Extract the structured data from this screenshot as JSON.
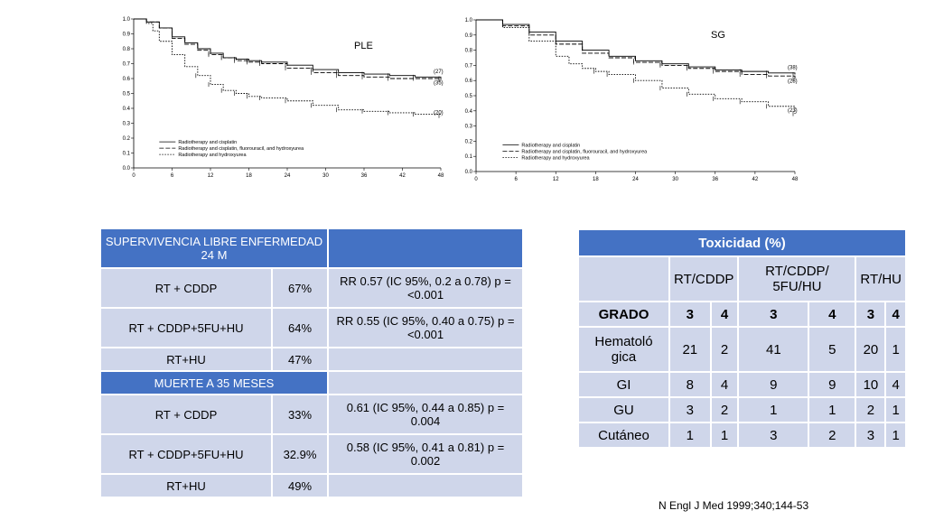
{
  "chart_data": [
    {
      "type": "line",
      "panel_label": "PLE",
      "x_ticks": [
        0,
        6,
        12,
        18,
        24,
        30,
        36,
        42,
        48
      ],
      "y_ticks": [
        "0.0",
        "0.1",
        "0.2",
        "0.3",
        "0.4",
        "0.5",
        "0.6",
        "0.7",
        "0.8",
        "0.9",
        "1.0"
      ],
      "xlim": [
        0,
        48
      ],
      "ylim": [
        0,
        1
      ],
      "legend_position": "bottom-left",
      "series": [
        {
          "name": "Radiotherapy and cisplatin",
          "style": "solid",
          "end_label": "(27)",
          "x": [
            0,
            2,
            4,
            6,
            8,
            10,
            12,
            14,
            16,
            18,
            20,
            24,
            28,
            32,
            36,
            40,
            44,
            48
          ],
          "y": [
            1.0,
            0.98,
            0.94,
            0.88,
            0.84,
            0.8,
            0.77,
            0.74,
            0.73,
            0.72,
            0.71,
            0.69,
            0.66,
            0.64,
            0.63,
            0.62,
            0.61,
            0.6
          ]
        },
        {
          "name": "Radiotherapy and cisplatin, fluorouracil, and hydroxyurea",
          "style": "dashed",
          "end_label": "(35)",
          "x": [
            0,
            2,
            4,
            6,
            8,
            10,
            12,
            14,
            16,
            18,
            20,
            24,
            28,
            32,
            36,
            40,
            44,
            48
          ],
          "y": [
            1.0,
            0.98,
            0.94,
            0.87,
            0.83,
            0.79,
            0.76,
            0.74,
            0.72,
            0.71,
            0.7,
            0.67,
            0.64,
            0.62,
            0.61,
            0.6,
            0.6,
            0.59
          ]
        },
        {
          "name": "Radiotherapy and hydroxyurea",
          "style": "dotted",
          "end_label": "(20)",
          "x": [
            0,
            2,
            3,
            4,
            6,
            8,
            10,
            12,
            14,
            16,
            18,
            20,
            24,
            28,
            32,
            36,
            40,
            44,
            48
          ],
          "y": [
            1.0,
            0.97,
            0.92,
            0.85,
            0.76,
            0.68,
            0.62,
            0.56,
            0.52,
            0.5,
            0.48,
            0.47,
            0.45,
            0.42,
            0.39,
            0.38,
            0.37,
            0.36,
            0.35
          ]
        }
      ]
    },
    {
      "type": "line",
      "panel_label": "SG",
      "x_ticks": [
        0,
        6,
        12,
        18,
        24,
        30,
        36,
        42,
        48
      ],
      "y_ticks": [
        "0.0",
        "0.1",
        "0.2",
        "0.3",
        "0.4",
        "0.5",
        "0.6",
        "0.7",
        "0.8",
        "0.9",
        "1.0"
      ],
      "xlim": [
        0,
        48
      ],
      "ylim": [
        0,
        1
      ],
      "legend_position": "bottom-left",
      "series": [
        {
          "name": "Radiotherapy and cisplatin",
          "style": "solid",
          "end_label": "(38)",
          "x": [
            0,
            4,
            8,
            12,
            16,
            20,
            24,
            28,
            32,
            36,
            40,
            44,
            48
          ],
          "y": [
            1.0,
            0.97,
            0.92,
            0.86,
            0.8,
            0.76,
            0.73,
            0.71,
            0.69,
            0.67,
            0.66,
            0.65,
            0.64
          ]
        },
        {
          "name": "Radiotherapy and cisplatin, fluorouracil, and hydroxyurea",
          "style": "dashed",
          "end_label": "(28)",
          "x": [
            0,
            4,
            8,
            12,
            16,
            20,
            24,
            28,
            32,
            36,
            40,
            44,
            48
          ],
          "y": [
            1.0,
            0.96,
            0.9,
            0.84,
            0.78,
            0.75,
            0.72,
            0.7,
            0.68,
            0.66,
            0.64,
            0.63,
            0.61
          ]
        },
        {
          "name": "Radiotherapy and hydroxyurea",
          "style": "dotted",
          "end_label": "(23)",
          "x": [
            0,
            4,
            8,
            12,
            14,
            16,
            18,
            20,
            24,
            28,
            32,
            36,
            40,
            44,
            48
          ],
          "y": [
            1.0,
            0.95,
            0.86,
            0.76,
            0.71,
            0.68,
            0.66,
            0.64,
            0.6,
            0.55,
            0.51,
            0.48,
            0.46,
            0.43,
            0.38
          ]
        }
      ]
    }
  ],
  "survival_table": {
    "header1": "SUPERVIVENCIA LIBRE ENFERMEDAD 24 M",
    "header2": "MUERTE A 35 MESES",
    "rows1": [
      {
        "arm": "RT + CDDP",
        "pct": "67%",
        "stat": "RR 0.57 (IC 95%, 0.2 a 0.78) p =<0.001"
      },
      {
        "arm": "RT + CDDP+5FU+HU",
        "pct": "64%",
        "stat": "RR 0.55 (IC 95%, 0.40 a 0.75) p =<0.001"
      },
      {
        "arm": "RT+HU",
        "pct": "47%",
        "stat": ""
      }
    ],
    "rows2": [
      {
        "arm": "RT + CDDP",
        "pct": "33%",
        "stat": "0.61 (IC 95%, 0.44 a 0.85) p = 0.004"
      },
      {
        "arm": "RT + CDDP+5FU+HU",
        "pct": "32.9%",
        "stat": "0.58 (IC 95%, 0.41 a 0.81) p = 0.002"
      },
      {
        "arm": "RT+HU",
        "pct": "49%",
        "stat": ""
      }
    ]
  },
  "toxicity_table": {
    "title": "Toxicidad (%)",
    "arms": [
      "RT/CDDP",
      "RT/CDDP/ 5FU/HU",
      "RT/HU"
    ],
    "grade_label": "GRADO",
    "grades": [
      "3",
      "4",
      "3",
      "4",
      "3",
      "4"
    ],
    "rows": [
      {
        "label": "Hematoló gica",
        "values": [
          "21",
          "2",
          "41",
          "5",
          "20",
          "1"
        ]
      },
      {
        "label": "GI",
        "values": [
          "8",
          "4",
          "9",
          "9",
          "10",
          "4"
        ]
      },
      {
        "label": "GU",
        "values": [
          "3",
          "2",
          "1",
          "1",
          "2",
          "1"
        ]
      },
      {
        "label": "Cutáneo",
        "values": [
          "1",
          "1",
          "3",
          "2",
          "3",
          "1"
        ]
      }
    ]
  },
  "reference": "N Engl J Med 1999;340;144-53"
}
